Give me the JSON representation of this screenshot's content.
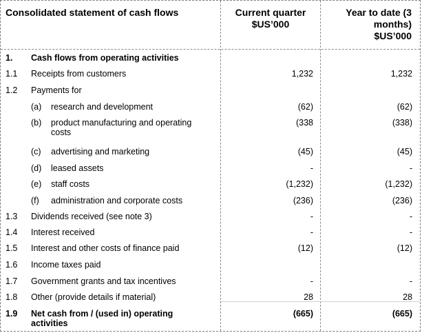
{
  "header": {
    "title": "Consolidated statement of cash flows",
    "col_current": [
      "Current quarter",
      "$US’000"
    ],
    "col_ytd": [
      "Year to date (3",
      "months)",
      "$US’000"
    ]
  },
  "rows": [
    {
      "ref": "1.",
      "sub": "",
      "label": [
        "Cash flows from operating activities"
      ],
      "current": "",
      "ytd": "",
      "bold": true
    },
    {
      "ref": "1.1",
      "sub": "",
      "label": [
        "Receipts from customers"
      ],
      "current": "1,232",
      "ytd": "1,232",
      "bold": false
    },
    {
      "ref": "1.2",
      "sub": "",
      "label": [
        "Payments for"
      ],
      "current": "",
      "ytd": "",
      "bold": false
    },
    {
      "ref": "",
      "sub": "(a)",
      "label": [
        "research and development"
      ],
      "current": "(62)",
      "ytd": "(62)",
      "bold": false
    },
    {
      "ref": "",
      "sub": "(b)",
      "label": [
        "product manufacturing and operating",
        "costs"
      ],
      "current": "(338",
      "ytd": "(338)",
      "bold": false
    },
    {
      "ref": "",
      "sub": "(c)",
      "label": [
        "advertising and marketing"
      ],
      "current": "(45)",
      "ytd": "(45)",
      "bold": false
    },
    {
      "ref": "",
      "sub": "(d)",
      "label": [
        "leased assets"
      ],
      "current": "-",
      "ytd": "-",
      "bold": false
    },
    {
      "ref": "",
      "sub": "(e)",
      "label": [
        "staff costs"
      ],
      "current": "(1,232)",
      "ytd": "(1,232)",
      "bold": false
    },
    {
      "ref": "",
      "sub": "(f)",
      "label": [
        "administration and corporate costs"
      ],
      "current": "(236)",
      "ytd": "(236)",
      "bold": false
    },
    {
      "ref": "1.3",
      "sub": "",
      "label": [
        "Dividends received (see note 3)"
      ],
      "current": "-",
      "ytd": "-",
      "bold": false
    },
    {
      "ref": "1.4",
      "sub": "",
      "label": [
        "Interest received"
      ],
      "current": "-",
      "ytd": "-",
      "bold": false
    },
    {
      "ref": "1.5",
      "sub": "",
      "label": [
        "Interest and other costs of finance paid"
      ],
      "current": "(12)",
      "ytd": "(12)",
      "bold": false
    },
    {
      "ref": "1.6",
      "sub": "",
      "label": [
        "Income taxes paid"
      ],
      "current": "",
      "ytd": "",
      "bold": false
    },
    {
      "ref": "1.7",
      "sub": "",
      "label": [
        "Government grants and tax incentives"
      ],
      "current": "-",
      "ytd": "-",
      "bold": false
    },
    {
      "ref": "1.8",
      "sub": "",
      "label": [
        "Other (provide details if material)"
      ],
      "current": "28",
      "ytd": "28",
      "bold": false
    },
    {
      "ref": "1.9",
      "sub": "",
      "label": [
        "Net cash from / (used in) operating",
        "activities"
      ],
      "current": "(665)",
      "ytd": "(665)",
      "bold": true
    }
  ]
}
